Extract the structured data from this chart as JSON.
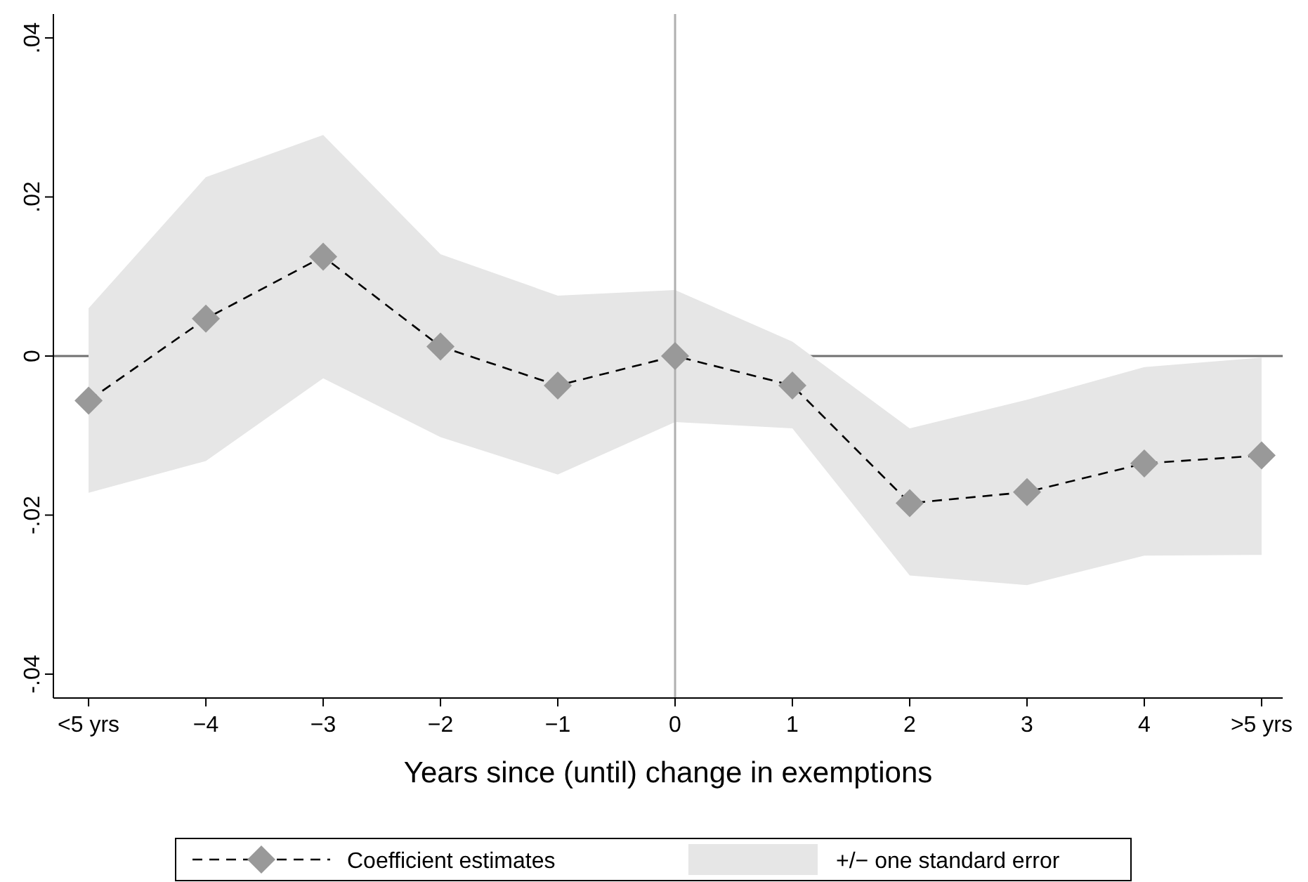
{
  "chart_data": {
    "type": "line",
    "xlabel": "Years since (until) change in exemptions",
    "x": [
      -5,
      -4,
      -3,
      -2,
      -1,
      0,
      1,
      2,
      3,
      4,
      5
    ],
    "series": [
      {
        "name": "Coefficient estimates",
        "color": "#999999",
        "values": [
          -0.0056,
          0.0047,
          0.0125,
          0.0012,
          -0.0037,
          0,
          -0.0037,
          -0.0185,
          -0.0171,
          -0.0135,
          -0.0125
        ],
        "lower": [
          -0.0172,
          -0.0132,
          -0.0028,
          -0.0102,
          -0.0149,
          -0.0083,
          -0.0091,
          -0.0276,
          -0.0288,
          -0.0251,
          -0.025
        ],
        "upper": [
          0.006,
          0.0225,
          0.0278,
          0.0128,
          0.0076,
          0.0083,
          0.0018,
          -0.0091,
          -0.0055,
          -0.0014,
          -0.0002
        ]
      }
    ],
    "marker": "diamond",
    "line_style": "dashed",
    "legend": "bottom",
    "grid": false,
    "annotations": [
      "+/− one standard error"
    ],
    "xlim": [
      -5.3,
      5.18
    ],
    "xticks": [
      {
        "value": -5,
        "label": "<5 yrs"
      },
      {
        "value": -4,
        "label": "−4"
      },
      {
        "value": -3,
        "label": "−3"
      },
      {
        "value": -2,
        "label": "−2"
      },
      {
        "value": -1,
        "label": "−1"
      },
      0,
      1,
      2,
      3,
      4,
      {
        "value": 5,
        "label": ">5 yrs"
      }
    ],
    "ylim": [
      -0.043,
      0.043
    ],
    "yticks": [
      {
        "value": -0.04,
        "label": "-.04"
      },
      {
        "value": -0.02,
        "label": "-.02"
      },
      0,
      {
        "value": 0.02,
        "label": ".02"
      },
      {
        "value": 0.04,
        "label": ".04"
      }
    ],
    "ref_lines": [
      {
        "axis": "x",
        "value": 0,
        "color": "#b0b0b0"
      },
      {
        "axis": "y",
        "value": 0,
        "color": "#707070"
      }
    ]
  }
}
